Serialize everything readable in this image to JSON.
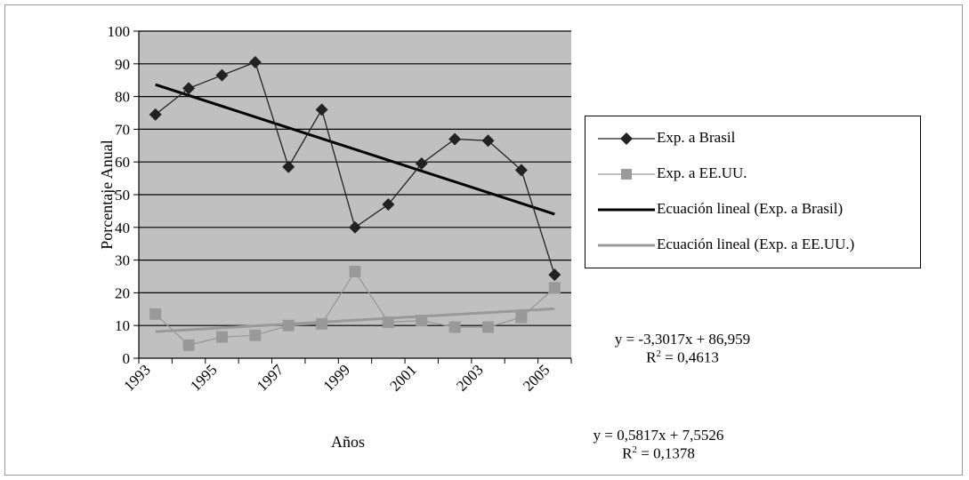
{
  "chart_data": {
    "type": "line",
    "xlabel": "Años",
    "ylabel": "Porcentaje Anual",
    "ylim": [
      0,
      100
    ],
    "yticks": [
      0,
      10,
      20,
      30,
      40,
      50,
      60,
      70,
      80,
      90,
      100
    ],
    "x_tick_labels": [
      "1993",
      "1995",
      "1997",
      "1999",
      "2001",
      "2003",
      "2005"
    ],
    "x": [
      1993,
      1994,
      1995,
      1996,
      1997,
      1998,
      1999,
      2000,
      2001,
      2002,
      2003,
      2004,
      2005
    ],
    "grid": true,
    "legend_position": "right",
    "series": [
      {
        "name": "Exp. a Brasil",
        "marker": "diamond",
        "color": "#222222",
        "values": [
          74.5,
          82.5,
          86.5,
          90.5,
          58.5,
          76,
          40,
          47,
          59.5,
          67,
          66.5,
          57.5,
          25.5
        ]
      },
      {
        "name": "Exp. a EE.UU.",
        "marker": "square",
        "color": "#999999",
        "values": [
          13.5,
          4,
          6.5,
          7,
          10,
          10.5,
          26.5,
          11,
          11.5,
          9.5,
          9.5,
          12.5,
          21.5
        ]
      }
    ],
    "trendlines": [
      {
        "name": "Ecuación lineal (Exp. a Brasil)",
        "slope": -3.3017,
        "intercept": 86.959,
        "color": "#000000"
      },
      {
        "name": "Ecuación lineal (Exp. a EE.UU.)",
        "slope": 0.5817,
        "intercept": 7.5526,
        "color": "#999999"
      }
    ],
    "equations": [
      {
        "line1": "y = -3,3017x + 86,959",
        "r2_prefix": "R",
        "r2_suffix": " = 0,4613"
      },
      {
        "line1": "y = 0,5817x + 7,5526",
        "r2_prefix": "R",
        "r2_suffix": " = 0,1378"
      }
    ],
    "colors": {
      "plot_background": "#c0c0c0",
      "gridline": "#000000"
    }
  }
}
